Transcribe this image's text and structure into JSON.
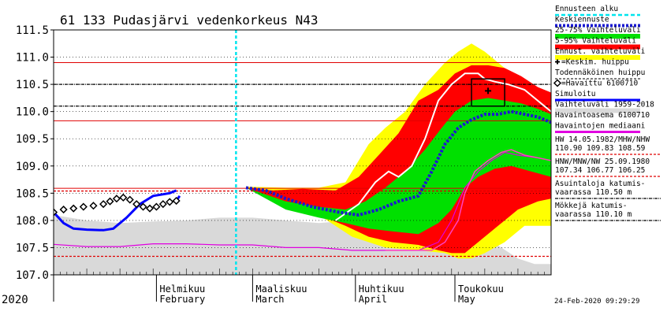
{
  "chart_data": {
    "type": "area",
    "title": "61 133 Pudasjärvi vedenkorkeus N43",
    "year_label": "2020",
    "timestamp": "24-Feb-2020 09:29:29",
    "y_ticks": [
      "107.0",
      "107.5",
      "108.0",
      "108.5",
      "109.0",
      "109.5",
      "110.0",
      "110.5",
      "111.0",
      "111.5"
    ],
    "ylim": [
      107.0,
      111.5
    ],
    "x_range_days": [
      0,
      150
    ],
    "months": [
      {
        "fi": "Helmikuu",
        "en": "February",
        "day": 31
      },
      {
        "fi": "Maaliskuu",
        "en": "March",
        "day": 60
      },
      {
        "fi": "Huhtikuu",
        "en": "April",
        "day": 91
      },
      {
        "fi": "Toukokuu",
        "en": "May",
        "day": 121
      }
    ],
    "forecast_start_day": 55,
    "hlines": [
      {
        "value": 110.9,
        "color": "#e00000",
        "dash": false
      },
      {
        "value": 110.5,
        "color": "#000000",
        "dash": true
      },
      {
        "value": 110.1,
        "color": "#000000",
        "dash": true
      },
      {
        "value": 109.83,
        "color": "#e00000",
        "dash": false
      },
      {
        "value": 108.59,
        "color": "#e00000",
        "dash": false
      },
      {
        "value": 108.54,
        "color": "#e00000",
        "dash": true
      },
      {
        "value": 107.34,
        "color": "#e00000",
        "dash": true
      }
    ],
    "legend": [
      {
        "label": "Ennusteen alku",
        "color": "#00e5ee",
        "style": "dash"
      },
      {
        "label": "Keskiennuste",
        "color": "#1a1ad0",
        "style": "dots"
      },
      {
        "label": "25-75% Vaihteluväli",
        "color": "#00e000",
        "style": "band"
      },
      {
        "label": "5-95% Vaihteluväli",
        "color": "#ff0000",
        "style": "band"
      },
      {
        "label": "Ennust. vaihteluväli",
        "color": "#ffff00",
        "style": "band"
      },
      {
        "label": "=Keskim. huippu",
        "color": "#000000",
        "style": "plus"
      },
      {
        "label": "Todennäköinen huippu",
        "color": "#000000",
        "style": "box"
      },
      {
        "label": "=Havaittu 6100710",
        "color": "#000000",
        "style": "diamond"
      },
      {
        "label": "Simuloitu",
        "color": "#0000ff",
        "style": "line"
      },
      {
        "label": "Vaihteluväli 1959-2018",
        "color": "#d9d9d9",
        "style": "band"
      },
      {
        "label": "Havaintoasema 6100710",
        "color": "",
        "style": "none"
      },
      {
        "label": "Havaintojen mediaani",
        "color": "#e000e0",
        "style": "line"
      }
    ],
    "notes": [
      {
        "lines": [
          "HW 14.05.1982/MHW/NHW",
          "110.90 109.83 108.59"
        ],
        "color": "#e00000"
      },
      {
        "lines": [
          "HNW/MNW/NW 25.09.1980",
          "107.34 106.77 106.25"
        ],
        "color": "#e00000"
      },
      {
        "lines": [
          "Asuintaloja katumis-",
          "vaarassa 110.50 m"
        ],
        "color": "#000000"
      },
      {
        "lines": [
          "Mökkejä katumis-",
          "vaarassa 110.10 m"
        ],
        "color": "#000000"
      }
    ],
    "series": {
      "hist_upper": [
        [
          0,
          108.1
        ],
        [
          10,
          108.0
        ],
        [
          20,
          107.95
        ],
        [
          30,
          107.98
        ],
        [
          40,
          108.0
        ],
        [
          50,
          108.05
        ],
        [
          60,
          108.05
        ],
        [
          70,
          108.0
        ],
        [
          80,
          107.95
        ],
        [
          90,
          108.0
        ],
        [
          100,
          108.1
        ],
        [
          108,
          108.15
        ],
        [
          115,
          108.2
        ],
        [
          120,
          108.2
        ],
        [
          125,
          108.1
        ],
        [
          130,
          107.7
        ],
        [
          135,
          107.5
        ],
        [
          140,
          107.3
        ],
        [
          145,
          107.2
        ],
        [
          150,
          107.2
        ]
      ],
      "hist_lower": [
        [
          0,
          107.0
        ],
        [
          150,
          107.0
        ]
      ],
      "yellow_upper": [
        [
          58,
          108.62
        ],
        [
          70,
          108.6
        ],
        [
          80,
          108.6
        ],
        [
          88,
          108.7
        ],
        [
          95,
          109.4
        ],
        [
          100,
          109.7
        ],
        [
          106,
          110.0
        ],
        [
          112,
          110.5
        ],
        [
          118,
          110.9
        ],
        [
          122,
          111.1
        ],
        [
          126,
          111.25
        ],
        [
          130,
          111.1
        ],
        [
          134,
          110.9
        ],
        [
          140,
          110.6
        ],
        [
          146,
          110.3
        ],
        [
          150,
          110.2
        ]
      ],
      "yellow_lower": [
        [
          58,
          108.6
        ],
        [
          70,
          108.4
        ],
        [
          80,
          108.1
        ],
        [
          90,
          107.7
        ],
        [
          100,
          107.5
        ],
        [
          110,
          107.45
        ],
        [
          118,
          107.4
        ],
        [
          122,
          107.3
        ],
        [
          126,
          107.3
        ],
        [
          130,
          107.4
        ],
        [
          136,
          107.6
        ],
        [
          142,
          107.9
        ],
        [
          150,
          107.9
        ]
      ],
      "red_upper": [
        [
          58,
          108.6
        ],
        [
          66,
          108.55
        ],
        [
          75,
          108.58
        ],
        [
          85,
          108.55
        ],
        [
          92,
          108.8
        ],
        [
          98,
          109.2
        ],
        [
          104,
          109.6
        ],
        [
          110,
          110.2
        ],
        [
          116,
          110.4
        ],
        [
          121,
          110.7
        ],
        [
          126,
          110.85
        ],
        [
          131,
          110.85
        ],
        [
          136,
          110.8
        ],
        [
          141,
          110.65
        ],
        [
          146,
          110.45
        ],
        [
          150,
          110.35
        ]
      ],
      "red_lower": [
        [
          58,
          108.6
        ],
        [
          70,
          108.25
        ],
        [
          80,
          108.1
        ],
        [
          88,
          107.9
        ],
        [
          95,
          107.7
        ],
        [
          102,
          107.6
        ],
        [
          110,
          107.55
        ],
        [
          116,
          107.45
        ],
        [
          120,
          107.4
        ],
        [
          124,
          107.4
        ],
        [
          128,
          107.6
        ],
        [
          134,
          107.9
        ],
        [
          140,
          108.2
        ],
        [
          146,
          108.35
        ],
        [
          150,
          108.4
        ]
      ],
      "green_upper": [
        [
          58,
          108.6
        ],
        [
          70,
          108.35
        ],
        [
          80,
          108.25
        ],
        [
          88,
          108.2
        ],
        [
          94,
          108.35
        ],
        [
          100,
          108.6
        ],
        [
          106,
          108.9
        ],
        [
          112,
          109.3
        ],
        [
          117,
          109.7
        ],
        [
          121,
          110.0
        ],
        [
          126,
          110.2
        ],
        [
          131,
          110.25
        ],
        [
          136,
          110.2
        ],
        [
          141,
          110.15
        ],
        [
          146,
          110.05
        ],
        [
          150,
          109.95
        ]
      ],
      "green_lower": [
        [
          58,
          108.6
        ],
        [
          70,
          108.2
        ],
        [
          80,
          108.05
        ],
        [
          88,
          107.95
        ],
        [
          95,
          107.85
        ],
        [
          102,
          107.8
        ],
        [
          110,
          107.75
        ],
        [
          116,
          107.95
        ],
        [
          120,
          108.2
        ],
        [
          124,
          108.6
        ],
        [
          128,
          108.8
        ],
        [
          133,
          108.95
        ],
        [
          138,
          109.0
        ],
        [
          144,
          108.9
        ],
        [
          150,
          108.8
        ]
      ],
      "mean_forecast": [
        [
          58,
          108.6
        ],
        [
          64,
          108.55
        ],
        [
          70,
          108.4
        ],
        [
          78,
          108.25
        ],
        [
          86,
          108.15
        ],
        [
          92,
          108.1
        ],
        [
          98,
          108.2
        ],
        [
          104,
          108.35
        ],
        [
          110,
          108.45
        ],
        [
          114,
          108.9
        ],
        [
          118,
          109.4
        ],
        [
          122,
          109.7
        ],
        [
          126,
          109.85
        ],
        [
          130,
          109.95
        ],
        [
          134,
          109.95
        ],
        [
          138,
          110.0
        ],
        [
          142,
          109.95
        ],
        [
          146,
          109.9
        ],
        [
          150,
          109.8
        ]
      ],
      "white_line": [
        [
          85,
          108.0
        ],
        [
          92,
          108.3
        ],
        [
          97,
          108.7
        ],
        [
          101,
          108.9
        ],
        [
          104,
          108.8
        ],
        [
          108,
          109.0
        ],
        [
          112,
          109.5
        ],
        [
          116,
          110.2
        ],
        [
          120,
          110.5
        ],
        [
          124,
          110.7
        ],
        [
          128,
          110.7
        ],
        [
          130,
          110.6
        ],
        [
          133,
          110.55
        ],
        [
          137,
          110.5
        ],
        [
          142,
          110.4
        ],
        [
          148,
          110.1
        ],
        [
          150,
          110.0
        ]
      ],
      "pink_line": [
        [
          100,
          107.45
        ],
        [
          110,
          107.45
        ],
        [
          114,
          107.45
        ],
        [
          118,
          107.6
        ],
        [
          122,
          108.0
        ],
        [
          124,
          108.5
        ],
        [
          127,
          108.9
        ],
        [
          131,
          109.1
        ],
        [
          135,
          109.25
        ],
        [
          138,
          109.3
        ],
        [
          142,
          109.2
        ],
        [
          146,
          109.15
        ],
        [
          150,
          109.1
        ]
      ],
      "median": [
        [
          0,
          107.56
        ],
        [
          10,
          107.52
        ],
        [
          20,
          107.52
        ],
        [
          30,
          107.57
        ],
        [
          40,
          107.57
        ],
        [
          50,
          107.55
        ],
        [
          60,
          107.55
        ],
        [
          70,
          107.5
        ],
        [
          80,
          107.5
        ],
        [
          90,
          107.45
        ],
        [
          100,
          107.45
        ],
        [
          110,
          107.45
        ],
        [
          116,
          107.6
        ],
        [
          120,
          108.0
        ],
        [
          124,
          108.6
        ],
        [
          128,
          108.9
        ],
        [
          132,
          109.1
        ],
        [
          136,
          109.25
        ],
        [
          140,
          109.2
        ],
        [
          146,
          109.15
        ],
        [
          150,
          109.1
        ]
      ],
      "simulated": [
        [
          0,
          108.15
        ],
        [
          3,
          107.95
        ],
        [
          6,
          107.85
        ],
        [
          10,
          107.83
        ],
        [
          15,
          107.82
        ],
        [
          18,
          107.85
        ],
        [
          22,
          108.05
        ],
        [
          26,
          108.3
        ],
        [
          30,
          108.45
        ],
        [
          35,
          108.5
        ],
        [
          37,
          108.55
        ]
      ],
      "observed": [
        [
          0,
          108.15
        ],
        [
          3,
          108.2
        ],
        [
          6,
          108.22
        ],
        [
          9,
          108.25
        ],
        [
          12,
          108.27
        ],
        [
          15,
          108.3
        ],
        [
          17,
          108.35
        ],
        [
          19,
          108.4
        ],
        [
          21,
          108.42
        ],
        [
          23,
          108.38
        ],
        [
          25,
          108.3
        ],
        [
          27,
          108.25
        ],
        [
          29,
          108.22
        ],
        [
          31,
          108.25
        ],
        [
          33,
          108.3
        ],
        [
          35,
          108.34
        ],
        [
          37,
          108.36
        ]
      ],
      "observed_line": [
        [
          37,
          108.36
        ],
        [
          38,
          108.45
        ]
      ]
    },
    "likely_peak_box": {
      "day_start": 126,
      "day_end": 136,
      "level_low": 110.1,
      "level_high": 110.6
    },
    "mean_peak": {
      "day": 131,
      "value": 110.38
    }
  }
}
